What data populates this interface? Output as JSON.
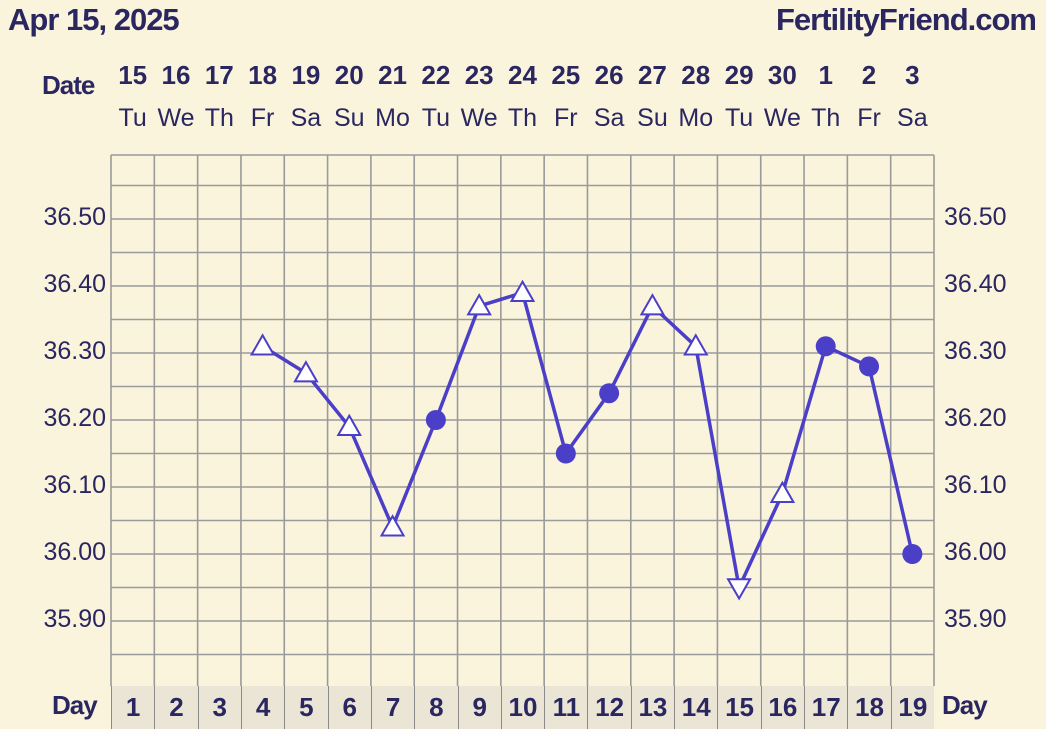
{
  "header": {
    "date": "Apr 15, 2025",
    "site": "FertilityFriend.com"
  },
  "labels": {
    "date_row": "Date",
    "day_row": "Day"
  },
  "chart_data": {
    "type": "line",
    "title": "",
    "xlabel": "Day",
    "ylabel": "",
    "ylim": [
      35.8,
      36.6
    ],
    "yticks": [
      "36.50",
      "36.40",
      "36.30",
      "36.20",
      "36.10",
      "36.00",
      "35.90"
    ],
    "grid": true,
    "line_color": "#4b3fc8",
    "dates": [
      "15",
      "16",
      "17",
      "18",
      "19",
      "20",
      "21",
      "22",
      "23",
      "24",
      "25",
      "26",
      "27",
      "28",
      "29",
      "30",
      "1",
      "2",
      "3"
    ],
    "weekdays": [
      "Tu",
      "We",
      "Th",
      "Fr",
      "Sa",
      "Su",
      "Mo",
      "Tu",
      "We",
      "Th",
      "Fr",
      "Sa",
      "Su",
      "Mo",
      "Tu",
      "We",
      "Th",
      "Fr",
      "Sa"
    ],
    "days": [
      "1",
      "2",
      "3",
      "4",
      "5",
      "6",
      "7",
      "8",
      "9",
      "10",
      "11",
      "12",
      "13",
      "14",
      "15",
      "16",
      "17",
      "18",
      "19"
    ],
    "points": [
      {
        "day": 4,
        "temp": 36.31,
        "marker": "triangle-up"
      },
      {
        "day": 5,
        "temp": 36.27,
        "marker": "triangle-up"
      },
      {
        "day": 6,
        "temp": 36.19,
        "marker": "triangle-up"
      },
      {
        "day": 7,
        "temp": 36.04,
        "marker": "triangle-up"
      },
      {
        "day": 8,
        "temp": 36.2,
        "marker": "dot"
      },
      {
        "day": 9,
        "temp": 36.37,
        "marker": "triangle-up"
      },
      {
        "day": 10,
        "temp": 36.39,
        "marker": "triangle-up"
      },
      {
        "day": 11,
        "temp": 36.15,
        "marker": "dot"
      },
      {
        "day": 12,
        "temp": 36.24,
        "marker": "dot"
      },
      {
        "day": 13,
        "temp": 36.37,
        "marker": "triangle-up"
      },
      {
        "day": 14,
        "temp": 36.31,
        "marker": "triangle-up"
      },
      {
        "day": 15,
        "temp": 35.95,
        "marker": "triangle-down"
      },
      {
        "day": 16,
        "temp": 36.09,
        "marker": "triangle-up"
      },
      {
        "day": 17,
        "temp": 36.31,
        "marker": "dot"
      },
      {
        "day": 18,
        "temp": 36.28,
        "marker": "dot"
      },
      {
        "day": 19,
        "temp": 36.0,
        "marker": "dot"
      }
    ]
  }
}
